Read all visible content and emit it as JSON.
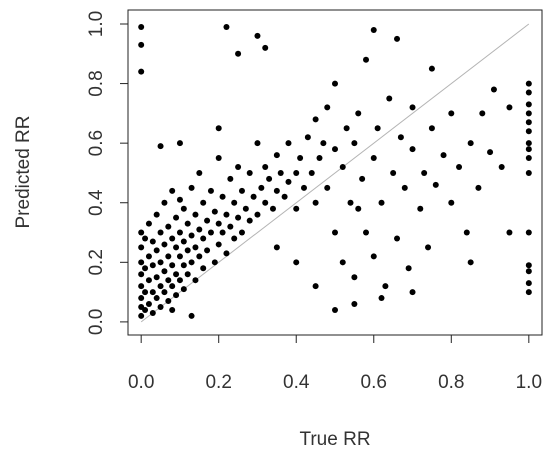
{
  "chart_data": {
    "type": "scatter",
    "xlabel": "True RR",
    "ylabel": "Predicted RR",
    "xlim": [
      -0.034,
      1.034
    ],
    "ylim": [
      -0.044,
      1.047
    ],
    "xticks": [
      {
        "value": 0,
        "label": "0.0"
      },
      0.2,
      0.4,
      0.6,
      0.8,
      {
        "value": 1,
        "label": "1.0"
      }
    ],
    "yticks": [
      {
        "value": 0,
        "label": "0.0"
      },
      0.2,
      0.4,
      0.6,
      0.8,
      {
        "value": 1,
        "label": "1.0"
      }
    ],
    "color": "#000000",
    "reference_line": {
      "x": [
        0,
        1
      ],
      "y": [
        0,
        1
      ],
      "color": "#b4b4b4"
    },
    "x": [
      0,
      0,
      0,
      0,
      0,
      0,
      0,
      0,
      0.01,
      0.01,
      0.01,
      0.01,
      0.02,
      0.02,
      0.02,
      0.02,
      0.03,
      0.03,
      0.03,
      0.03,
      0.04,
      0.04,
      0.04,
      0.04,
      0.05,
      0.05,
      0.05,
      0.05,
      0.06,
      0.06,
      0.06,
      0.06,
      0.07,
      0.07,
      0.07,
      0.07,
      0.08,
      0.08,
      0.08,
      0.08,
      0.09,
      0.09,
      0.09,
      0.09,
      0.1,
      0.1,
      0.1,
      0.1,
      0.11,
      0.11,
      0.11,
      0.11,
      0.12,
      0.12,
      0.12,
      0.13,
      0.13,
      0.13,
      0.14,
      0.14,
      0.14,
      0.15,
      0.15,
      0.15,
      0.16,
      0.16,
      0.16,
      0.17,
      0.17,
      0.18,
      0.18,
      0.19,
      0.19,
      0.2,
      0.2,
      0.2,
      0.21,
      0.21,
      0.22,
      0.22,
      0.23,
      0.23,
      0.24,
      0.24,
      0.25,
      0.25,
      0.26,
      0.26,
      0.27,
      0.28,
      0.28,
      0.29,
      0.3,
      0.3,
      0.31,
      0.32,
      0.32,
      0.33,
      0.34,
      0.35,
      0.35,
      0.36,
      0.37,
      0.38,
      0.38,
      0.4,
      0.4,
      0.41,
      0.42,
      0.43,
      0.44,
      0.45,
      0.45,
      0.46,
      0.47,
      0.48,
      0.48,
      0.5,
      0.5,
      0.5,
      0.52,
      0.52,
      0.53,
      0.54,
      0.55,
      0.55,
      0.55,
      0.56,
      0.57,
      0.58,
      0.58,
      0.6,
      0.6,
      0.6,
      0.61,
      0.62,
      0.63,
      0.64,
      0.65,
      0.66,
      0.67,
      0.68,
      0.69,
      0.7,
      0.7,
      0.72,
      0.73,
      0.74,
      0.75,
      0.76,
      0.78,
      0.8,
      0.8,
      0.82,
      0.84,
      0.85,
      0.87,
      0.88,
      0.9,
      0.91,
      0.93,
      0.95,
      0.95,
      1,
      1,
      1,
      1,
      1,
      1,
      1,
      1,
      1,
      1,
      1,
      1,
      1,
      1,
      1,
      0,
      0,
      0,
      0.05,
      0.22,
      0.3,
      0.32,
      0.25,
      0.2,
      0.1,
      0.13,
      0.08,
      0.5,
      0.4,
      0.45,
      0.35,
      0.62,
      0.66,
      0.7,
      0.75,
      0.85,
      0.56
    ],
    "y": [
      0.02,
      0.05,
      0.08,
      0.12,
      0.16,
      0.2,
      0.25,
      0.3,
      0.04,
      0.1,
      0.18,
      0.28,
      0.06,
      0.14,
      0.22,
      0.33,
      0.03,
      0.1,
      0.19,
      0.27,
      0.08,
      0.15,
      0.24,
      0.36,
      0.05,
      0.12,
      0.2,
      0.3,
      0.1,
      0.17,
      0.26,
      0.4,
      0.07,
      0.14,
      0.22,
      0.32,
      0.12,
      0.19,
      0.28,
      0.44,
      0.09,
      0.16,
      0.25,
      0.35,
      0.14,
      0.22,
      0.3,
      0.41,
      0.11,
      0.19,
      0.27,
      0.38,
      0.16,
      0.24,
      0.33,
      0.2,
      0.29,
      0.45,
      0.14,
      0.25,
      0.36,
      0.22,
      0.31,
      0.5,
      0.18,
      0.28,
      0.4,
      0.24,
      0.34,
      0.3,
      0.44,
      0.2,
      0.37,
      0.26,
      0.33,
      0.55,
      0.3,
      0.42,
      0.23,
      0.36,
      0.32,
      0.48,
      0.28,
      0.4,
      0.35,
      0.52,
      0.3,
      0.44,
      0.38,
      0.34,
      0.5,
      0.42,
      0.36,
      0.6,
      0.45,
      0.4,
      0.52,
      0.48,
      0.38,
      0.44,
      0.56,
      0.5,
      0.42,
      0.47,
      0.6,
      0.5,
      0.38,
      0.55,
      0.45,
      0.62,
      0.5,
      0.4,
      0.68,
      0.55,
      0.6,
      0.45,
      0.72,
      0.58,
      0.3,
      0.8,
      0.52,
      0.2,
      0.65,
      0.4,
      0.6,
      0.15,
      0.06,
      0.7,
      0.48,
      0.3,
      0.88,
      0.55,
      0.22,
      0.98,
      0.65,
      0.4,
      0.12,
      0.75,
      0.5,
      0.28,
      0.62,
      0.45,
      0.18,
      0.58,
      0.72,
      0.38,
      0.5,
      0.25,
      0.65,
      0.46,
      0.56,
      0.4,
      0.7,
      0.52,
      0.3,
      0.6,
      0.45,
      0.7,
      0.57,
      0.78,
      0.52,
      0.3,
      0.72,
      0.1,
      0.13,
      0.17,
      0.19,
      0.3,
      0.5,
      0.55,
      0.6,
      0.64,
      0.67,
      0.7,
      0.73,
      0.77,
      0.8,
      0.58,
      0.99,
      0.93,
      0.84,
      0.59,
      0.99,
      0.96,
      0.92,
      0.9,
      0.65,
      0.6,
      0.02,
      0.04,
      0.04,
      0.2,
      0.12,
      0.25,
      0.08,
      0.95,
      0.1,
      0.85,
      0.2,
      0.38
    ]
  }
}
